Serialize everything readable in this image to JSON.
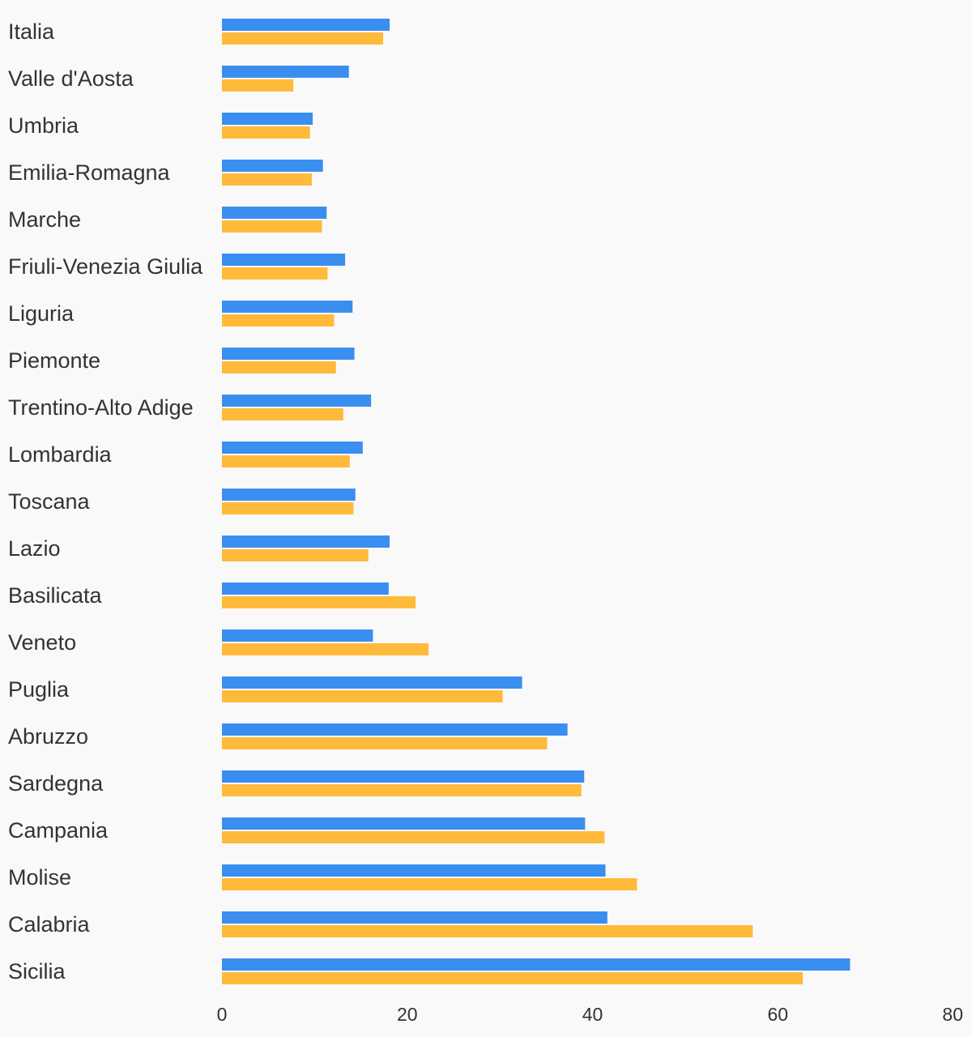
{
  "chart_data": {
    "type": "bar",
    "orientation": "horizontal",
    "categories": [
      "Italia",
      "Valle d'Aosta",
      "Umbria",
      "Emilia-Romagna",
      "Marche",
      "Friuli-Venezia Giulia",
      "Liguria",
      "Piemonte",
      "Trentino-Alto Adige",
      "Lombardia",
      "Toscana",
      "Lazio",
      "Basilicata",
      "Veneto",
      "Puglia",
      "Abruzzo",
      "Sardegna",
      "Campania",
      "Molise",
      "Calabria",
      "Sicilia"
    ],
    "series": [
      {
        "color": "#3a8ef0",
        "values": [
          18.1,
          13.7,
          9.8,
          10.9,
          11.3,
          13.3,
          14.1,
          14.3,
          16.1,
          15.2,
          14.4,
          18.1,
          18.0,
          16.3,
          32.4,
          37.3,
          39.1,
          39.2,
          41.4,
          41.6,
          67.8
        ]
      },
      {
        "color": "#ffba3a",
        "values": [
          17.4,
          7.7,
          9.5,
          9.7,
          10.8,
          11.4,
          12.1,
          12.3,
          13.1,
          13.8,
          14.2,
          15.8,
          20.9,
          22.3,
          30.3,
          35.1,
          38.8,
          41.3,
          44.8,
          57.3,
          62.7
        ]
      }
    ],
    "xaxis": {
      "ticks": [
        0,
        20,
        40,
        60,
        80
      ],
      "range": [
        0,
        80
      ]
    },
    "title": "",
    "xlabel": "",
    "ylabel": "",
    "grid": false,
    "legend": false
  }
}
